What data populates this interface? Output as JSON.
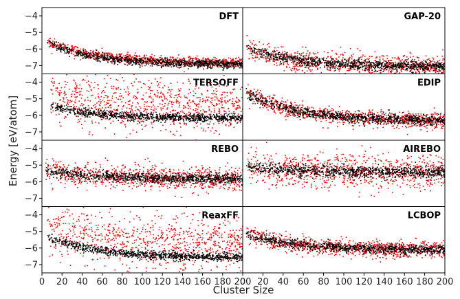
{
  "chart_data": {
    "type": "scatter",
    "layout": "4x2 panel grid, shared axes",
    "xlabel": "Cluster Size",
    "ylabel": "Energy [eV/atom]",
    "xlim": [
      0,
      200
    ],
    "ylim": [
      -7.5,
      -3.5
    ],
    "x_ticks": [
      "0",
      "20",
      "40",
      "60",
      "80",
      "100",
      "120",
      "140",
      "160",
      "180",
      "200"
    ],
    "y_ticks": [
      "-4",
      "-5",
      "-6",
      "-7"
    ],
    "colors": {
      "black_series": "#000000",
      "red_series": "#ff0000"
    },
    "panels": [
      {
        "title": "DFT",
        "black": {
          "x_range": [
            5,
            200
          ],
          "trend_start": -5.6,
          "trend_end": -6.9,
          "spread": 0.12
        },
        "red": {
          "spread": 0.15,
          "offset": 0.1
        }
      },
      {
        "title": "GAP-20",
        "black": {
          "x_range": [
            3,
            200
          ],
          "trend_start": -5.9,
          "trend_end": -7.05,
          "spread": 0.15
        },
        "red": {
          "spread": 0.35,
          "offset": 0.0
        }
      },
      {
        "title": "TERSOFF",
        "black": {
          "x_range": [
            8,
            200
          ],
          "trend_start": -5.4,
          "trend_end": -6.15,
          "spread": 0.12
        },
        "red": {
          "spread": 0.75,
          "offset": 0.9
        }
      },
      {
        "title": "EDIP",
        "black": {
          "x_range": [
            3,
            200
          ],
          "trend_start": -4.6,
          "trend_end": -6.3,
          "spread": 0.15
        },
        "red": {
          "spread": 0.25,
          "offset": 0.0
        }
      },
      {
        "title": "REBO",
        "black": {
          "x_range": [
            3,
            200
          ],
          "trend_start": -5.3,
          "trend_end": -5.8,
          "spread": 0.15
        },
        "red": {
          "spread": 0.35,
          "offset": 0.0
        }
      },
      {
        "title": "AIREBO",
        "black": {
          "x_range": [
            3,
            200
          ],
          "trend_start": -5.1,
          "trend_end": -5.4,
          "spread": 0.18
        },
        "red": {
          "spread": 0.5,
          "offset": 0.0
        }
      },
      {
        "title": "ReaxFF",
        "black": {
          "x_range": [
            5,
            200
          ],
          "trend_start": -5.3,
          "trend_end": -6.55,
          "spread": 0.12
        },
        "red": {
          "spread": 0.8,
          "offset": 1.0
        }
      },
      {
        "title": "LCBOP",
        "black": {
          "x_range": [
            3,
            200
          ],
          "trend_start": -5.1,
          "trend_end": -6.1,
          "spread": 0.15
        },
        "red": {
          "spread": 0.25,
          "offset": 0.0
        }
      }
    ]
  }
}
